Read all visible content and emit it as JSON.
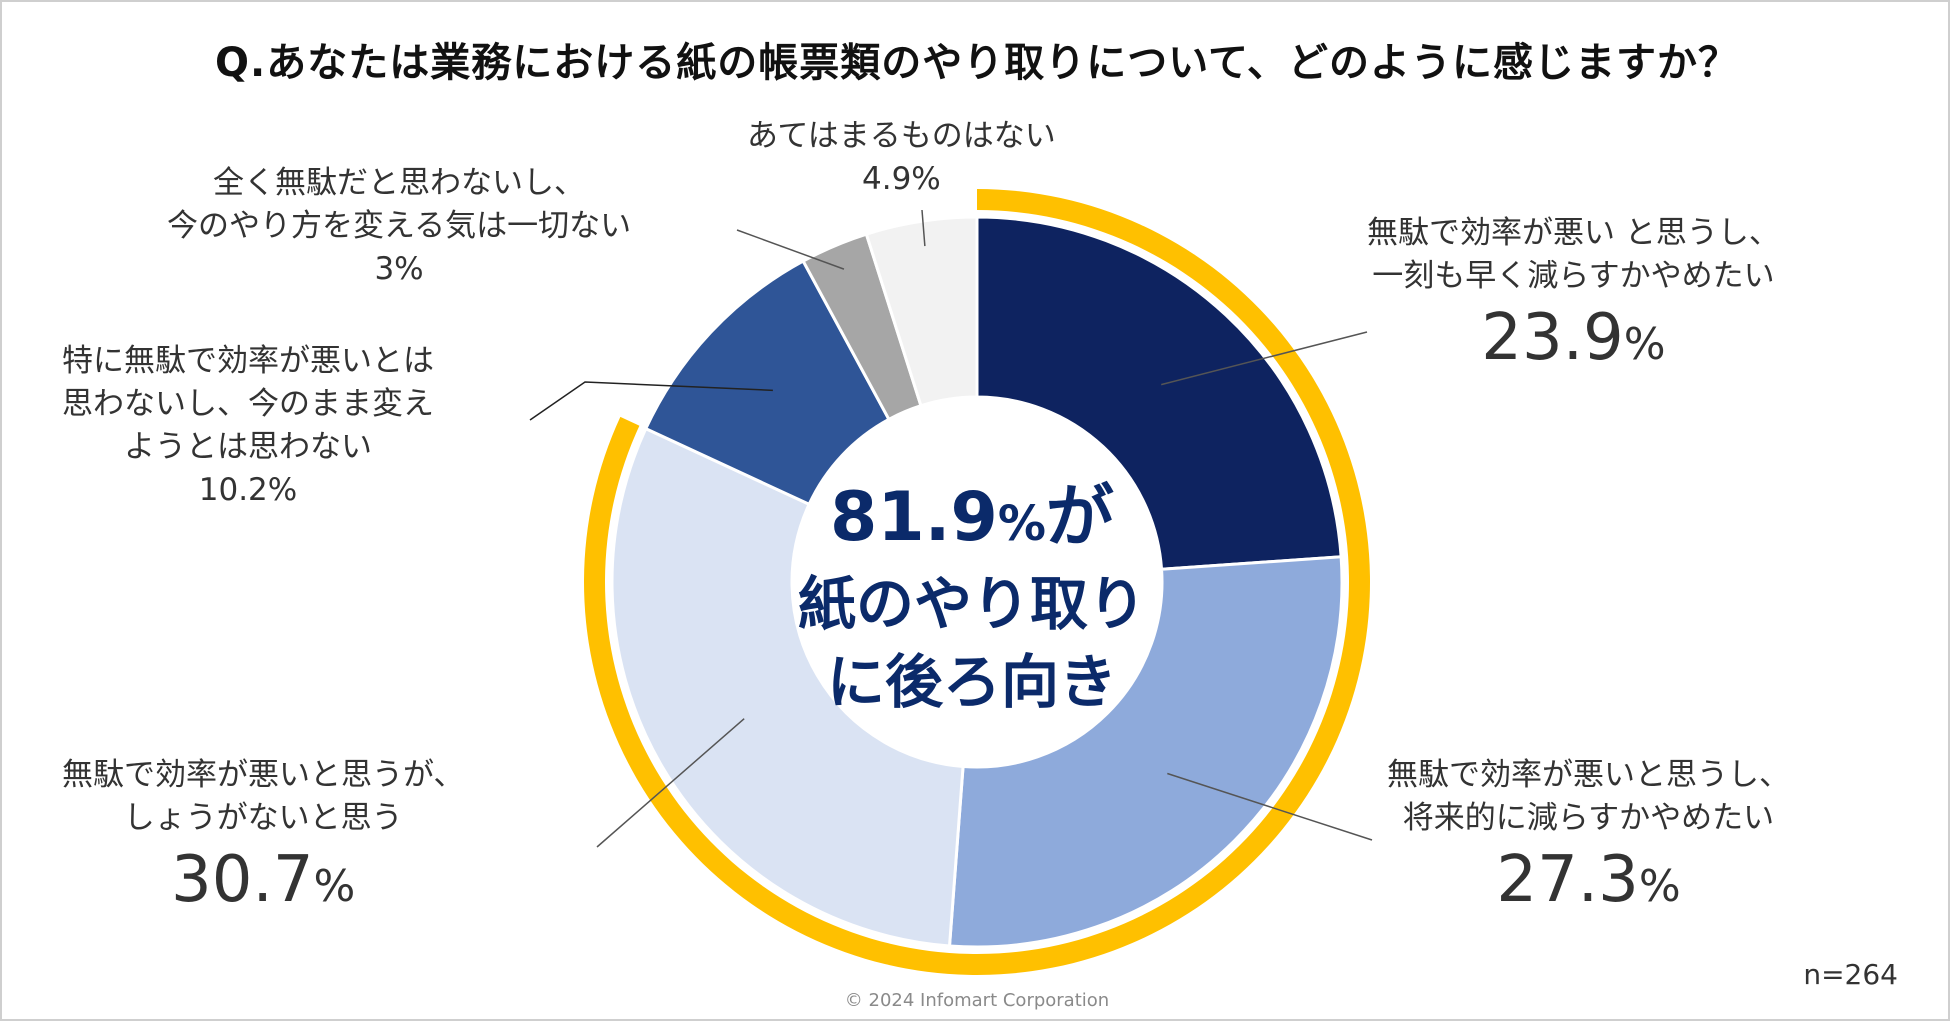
{
  "title": "Q.あなたは業務における紙の帳票類のやり取りについて、どのように感じますか？",
  "chart_data": {
    "type": "pie",
    "categories": [
      "無駄で効率が悪い と思うし、一刻も早く減らすかやめたい",
      "無駄で効率が悪いと思うし、将来的に減らすかやめたい",
      "無駄で効率が悪いと思うが、しょうがないと思う",
      "特に無駄で効率が悪いとは思わないし、今のまま変えようとは思わない",
      "全く無駄だと思わないし、今のやり方を変える気は一切ない",
      "あてはまるものはない"
    ],
    "values": [
      23.9,
      27.3,
      30.7,
      10.2,
      3.0,
      4.9
    ],
    "unit": "%",
    "colors": [
      "#0e2360",
      "#8eaadb",
      "#dae3f3",
      "#2f5597",
      "#a6a6a6",
      "#f2f2f2"
    ],
    "highlight_ring": {
      "covers": "first 3 categories",
      "value": 81.9,
      "color": "#ffc000"
    },
    "start_angle": "12 o'clock",
    "direction": "clockwise",
    "donut": true
  },
  "labels": {
    "s1": {
      "line1": "無駄で効率が悪い と思うし、",
      "line2": "一刻も早く減らすかやめたい",
      "num": "23.9",
      "pct": "%"
    },
    "s2": {
      "line1": "無駄で効率が悪いと思うし、",
      "line2": "将来的に減らすかやめたい",
      "num": "27.3",
      "pct": "%"
    },
    "s3": {
      "line1": "無駄で効率が悪いと思うが、",
      "line2": "しょうがないと思う",
      "num": "30.7",
      "pct": "%"
    },
    "s4": {
      "line1": "特に無駄で効率が悪いとは",
      "line2": "思わないし、今のまま変え",
      "line3": "ようとは思わない",
      "value": "10.2%"
    },
    "s5": {
      "line1": "全く無駄だと思わないし、",
      "line2": "今のやり方を変える気は一切ない",
      "value": "3%"
    },
    "s6": {
      "line1": "あてはまるものはない",
      "value": "4.9%"
    }
  },
  "center": {
    "num": "81.9",
    "pct": "%",
    "suffix": "が",
    "line2": "紙のやり取り",
    "line3": "に後ろ向き"
  },
  "note": "n=264",
  "copyright": "© 2024 Infomart Corporation"
}
